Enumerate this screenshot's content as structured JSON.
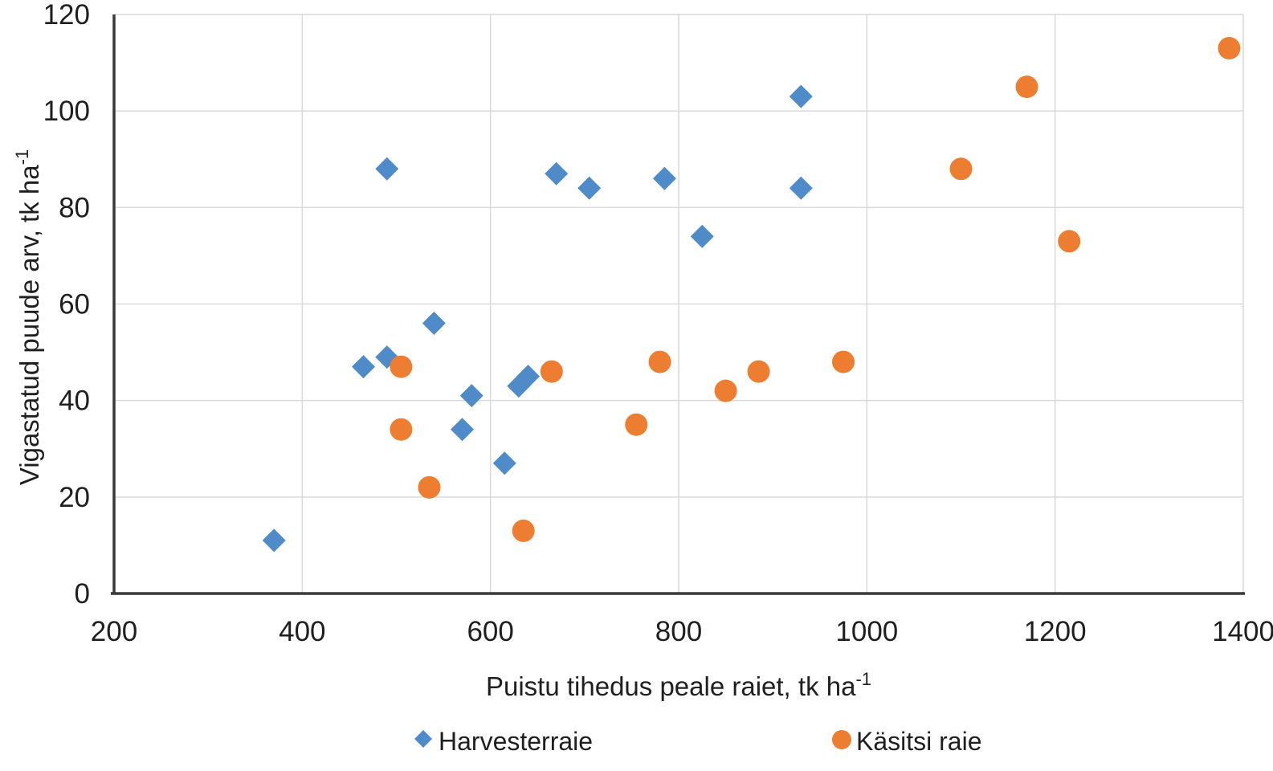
{
  "chart_data": {
    "type": "scatter",
    "title": "",
    "xlabel": "Puistu tihedus peale raiet, tk ha⁻¹",
    "ylabel": "Vigastatud puude arv, tk ha⁻¹",
    "xlim": [
      200,
      1400
    ],
    "ylim": [
      0,
      120
    ],
    "x_ticks": [
      200,
      400,
      600,
      800,
      1000,
      1200,
      1400
    ],
    "y_ticks": [
      0,
      20,
      40,
      60,
      80,
      100,
      120
    ],
    "grid": true,
    "legend_position": "bottom",
    "series": [
      {
        "name": "Harvesterraie",
        "marker": "diamond",
        "color": "#4E8BC8",
        "points": [
          [
            370,
            11
          ],
          [
            465,
            47
          ],
          [
            490,
            49
          ],
          [
            490,
            88
          ],
          [
            540,
            56
          ],
          [
            570,
            34
          ],
          [
            580,
            41
          ],
          [
            615,
            27
          ],
          [
            630,
            43
          ],
          [
            640,
            45
          ],
          [
            670,
            87
          ],
          [
            705,
            84
          ],
          [
            785,
            86
          ],
          [
            825,
            74
          ],
          [
            930,
            103
          ],
          [
            930,
            84
          ]
        ]
      },
      {
        "name": "Käsitsi raie",
        "marker": "circle",
        "color": "#ED7D31",
        "points": [
          [
            505,
            47
          ],
          [
            505,
            34
          ],
          [
            535,
            22
          ],
          [
            635,
            13
          ],
          [
            665,
            46
          ],
          [
            755,
            35
          ],
          [
            780,
            48
          ],
          [
            850,
            42
          ],
          [
            885,
            46
          ],
          [
            975,
            48
          ],
          [
            1100,
            88
          ],
          [
            1170,
            105
          ],
          [
            1215,
            73
          ],
          [
            1385,
            113
          ]
        ]
      }
    ]
  },
  "axis_titles": {
    "x_main": "Puistu tihedus peale raiet, tk ha",
    "x_sup": "-1",
    "y_main": "Vigastatud puude arv, tk ha",
    "y_sup": "-1"
  },
  "colors": {
    "gridline": "#d9d9d9",
    "axis_line": "#3a3a3a",
    "text": "#1f1f1f",
    "background": "#ffffff"
  }
}
